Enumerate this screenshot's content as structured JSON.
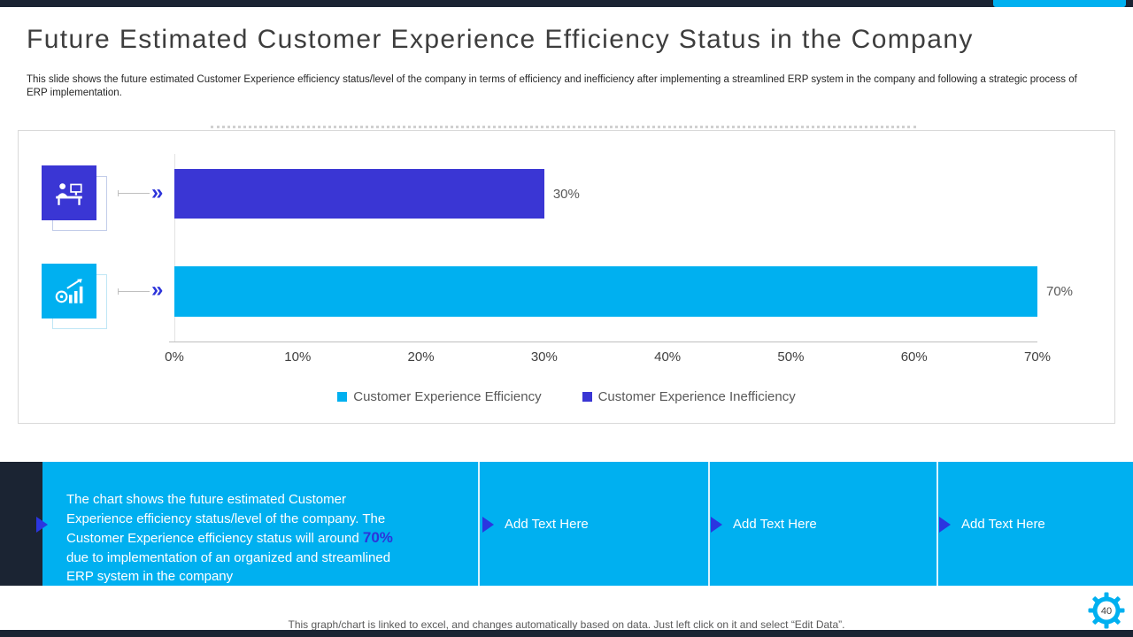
{
  "slide": {
    "title": "Future Estimated Customer Experience Efficiency Status in the Company",
    "subtitle": "This slide shows the future estimated Customer Experience efficiency status/level of the company in terms of efficiency and inefficiency after implementing a streamlined ERP system in the company and following a strategic process of ERP implementation.",
    "footer_note": "This graph/chart is linked to excel, and changes automatically based on data. Just left click on it and select “Edit Data”.",
    "page_number": "40"
  },
  "chart_data": {
    "type": "bar",
    "orientation": "horizontal",
    "title": "",
    "categories": [
      "Customer Experience Inefficiency",
      "Customer Experience Efficiency"
    ],
    "values": [
      30,
      70
    ],
    "value_labels": [
      "30%",
      "70%"
    ],
    "bar_colors": [
      "#3a36d4",
      "#00b0f0"
    ],
    "x_ticks": [
      "0%",
      "10%",
      "20%",
      "30%",
      "40%",
      "50%",
      "60%",
      "70%"
    ],
    "xlim": [
      0,
      70
    ],
    "grid": false,
    "legend_position": "bottom",
    "legend": [
      {
        "label": "Customer Experience Efficiency",
        "color": "#00b0f0"
      },
      {
        "label": "Customer Experience Inefficiency",
        "color": "#3a36d4"
      }
    ],
    "row_icons": [
      "workstation-icon",
      "growth-gear-icon"
    ]
  },
  "callouts": {
    "description": {
      "before": "The chart shows the future estimated Customer Experience efficiency status/level of the company. The Customer Experience efficiency status will around ",
      "highlight": "70%",
      "after": " due to implementation of an organized and streamlined ERP system in the company"
    },
    "placeholders": [
      {
        "label": "Add Text Here"
      },
      {
        "label": "Add Text Here"
      },
      {
        "label": "Add Text Here"
      }
    ]
  },
  "theme": {
    "navy": "#1b2433",
    "cyan": "#00b0f0",
    "blue": "#3a36d4",
    "highlight_blue": "#2d34da",
    "text_dark": "#3d3d3d",
    "text_gray": "#595959"
  }
}
